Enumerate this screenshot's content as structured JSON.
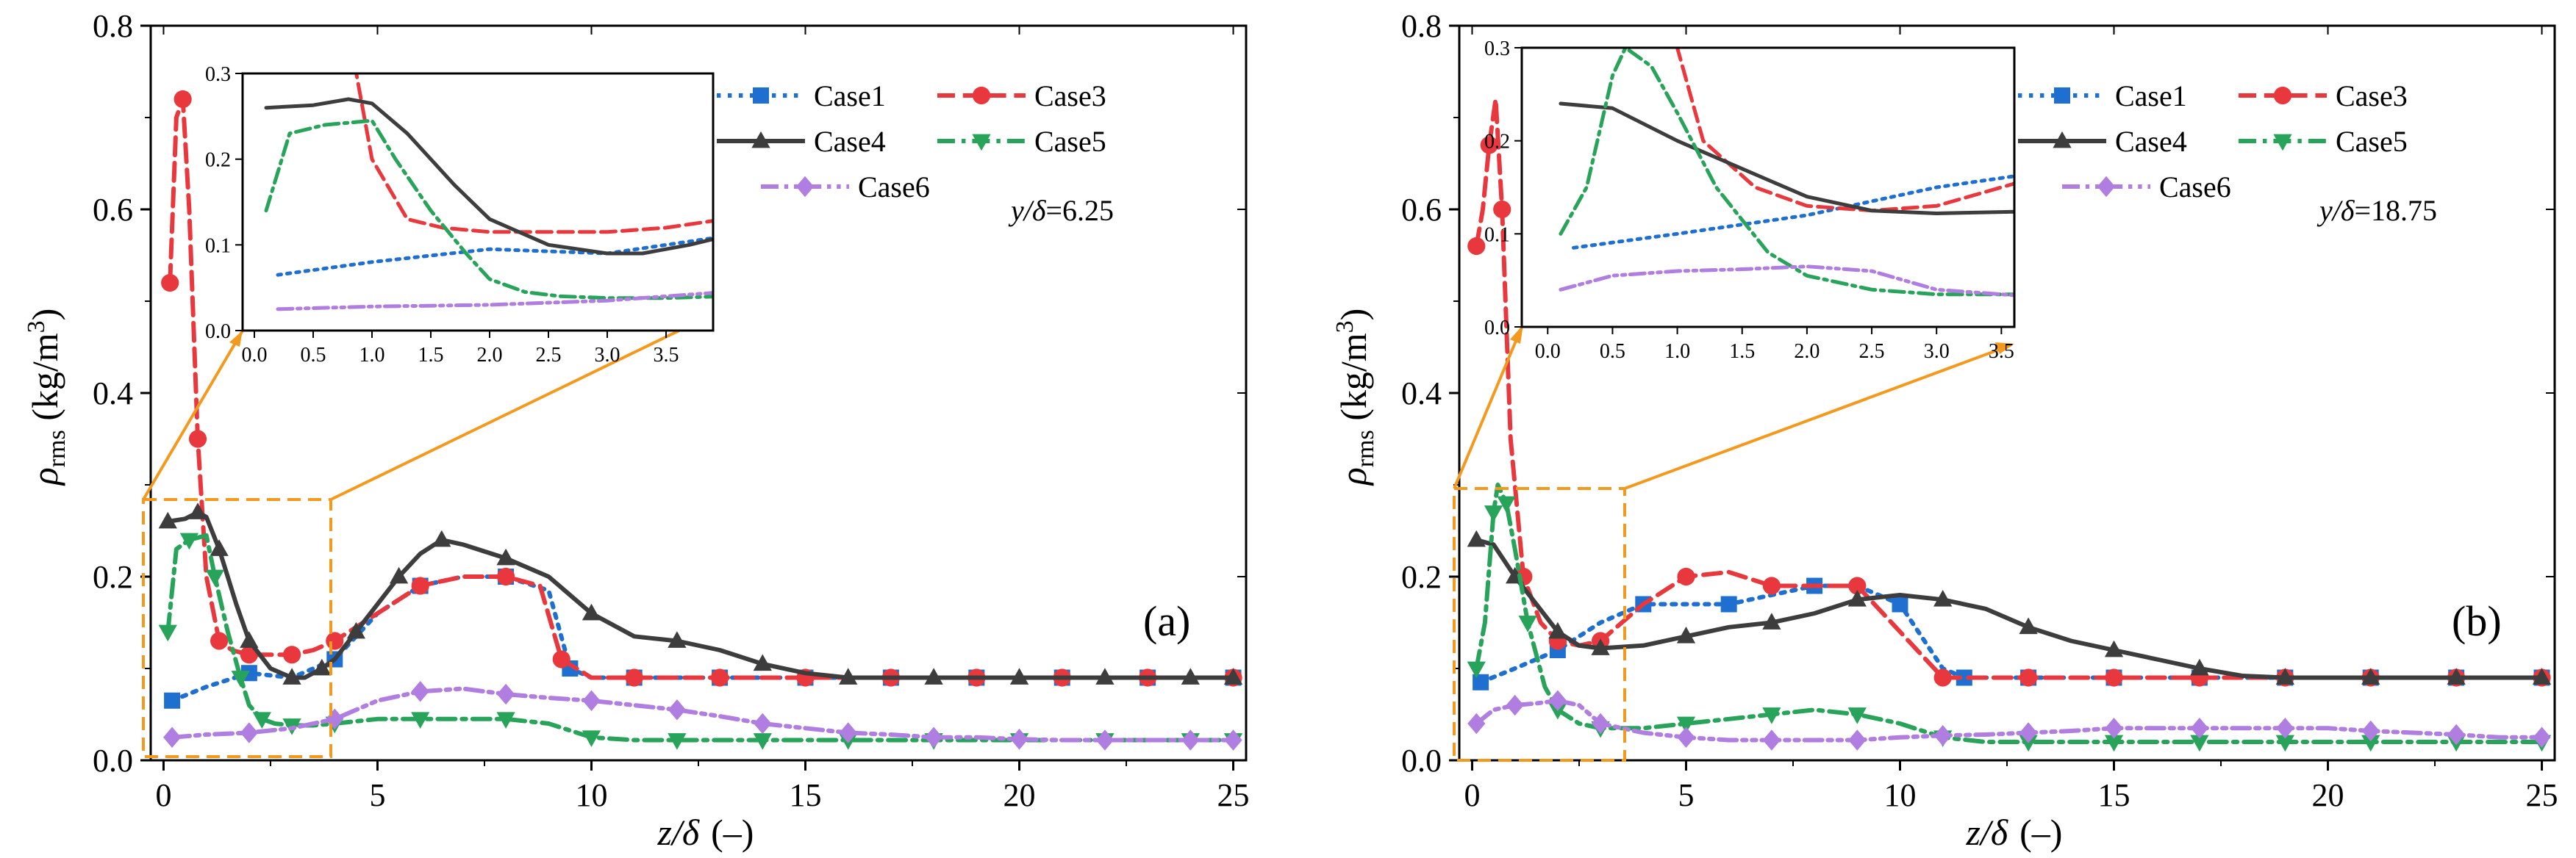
{
  "figure": {
    "xlabel_main": "z/δ",
    "xlabel_unit": "(–)",
    "ylabel_rho": "ρ",
    "ylabel_sub": "rms",
    "ylabel_unit": " (kg/m",
    "ylabel_sup": "3",
    "ylabel_close": ")"
  },
  "series_styles": [
    {
      "name": "Case1",
      "color": "#1f6fd0",
      "marker": "square",
      "dash": "dot"
    },
    {
      "name": "Case3",
      "color": "#e8383d",
      "marker": "circle",
      "dash": "dash"
    },
    {
      "name": "Case4",
      "color": "#3d3d3d",
      "marker": "triangle",
      "dash": "solid"
    },
    {
      "name": "Case5",
      "color": "#27a35a",
      "marker": "triangle-down",
      "dash": "dashdot"
    },
    {
      "name": "Case6",
      "color": "#b07de0",
      "marker": "diamond",
      "dash": "dashdotdot"
    }
  ],
  "chart_data": [
    {
      "type": "line",
      "panel_label": "(a)",
      "annotation_var": "y/δ",
      "annotation_val": "=6.25",
      "xlim": [
        -0.3,
        25.3
      ],
      "ylim": [
        0,
        0.8
      ],
      "xticks": [
        0,
        5,
        10,
        15,
        20,
        25
      ],
      "yticks": [
        0.0,
        0.2,
        0.4,
        0.6,
        0.8
      ],
      "inset": {
        "xlim": [
          -0.1,
          3.9
        ],
        "ylim": [
          0,
          0.3
        ],
        "xticks": [
          0,
          0.5,
          1,
          1.5,
          2,
          2.5,
          3,
          3.5
        ],
        "yticks": [
          0,
          0.1,
          0.2,
          0.3
        ]
      },
      "series": [
        {
          "name": "Case1",
          "x": [
            0.2,
            1.0,
            2.0,
            3.0,
            4.0,
            5.0,
            6.0,
            7.0,
            8.0,
            9.0,
            9.5,
            10,
            11,
            12,
            13,
            14,
            15,
            16,
            17,
            18,
            19,
            20,
            21,
            22,
            23,
            24,
            25
          ],
          "y": [
            0.065,
            0.08,
            0.095,
            0.09,
            0.11,
            0.16,
            0.19,
            0.2,
            0.2,
            0.185,
            0.1,
            0.09,
            0.09,
            0.09,
            0.09,
            0.09,
            0.09,
            0.09,
            0.09,
            0.09,
            0.09,
            0.09,
            0.09,
            0.09,
            0.09,
            0.09,
            0.09
          ]
        },
        {
          "name": "Case3",
          "x": [
            0.15,
            0.3,
            0.45,
            0.6,
            0.8,
            1.0,
            1.3,
            1.6,
            2.0,
            2.5,
            3.0,
            3.5,
            4.0,
            5.0,
            6.0,
            7.0,
            8.0,
            8.8,
            9.3,
            10,
            11,
            12,
            13,
            14,
            15,
            16,
            17,
            18,
            19,
            20,
            21,
            22,
            23,
            24,
            25
          ],
          "y": [
            0.52,
            0.7,
            0.72,
            0.6,
            0.35,
            0.2,
            0.13,
            0.12,
            0.115,
            0.115,
            0.115,
            0.12,
            0.13,
            0.16,
            0.19,
            0.2,
            0.2,
            0.19,
            0.11,
            0.09,
            0.09,
            0.09,
            0.09,
            0.09,
            0.09,
            0.09,
            0.09,
            0.09,
            0.09,
            0.09,
            0.09,
            0.09,
            0.09,
            0.09,
            0.09
          ]
        },
        {
          "name": "Case4",
          "x": [
            0.1,
            0.5,
            0.8,
            1.0,
            1.3,
            1.7,
            2.0,
            2.5,
            3.0,
            3.3,
            3.7,
            4.0,
            4.5,
            5.0,
            5.5,
            6.0,
            6.5,
            7.0,
            8.0,
            9.0,
            10,
            11,
            12,
            13,
            14,
            15,
            16,
            17,
            18,
            19,
            20,
            21,
            22,
            23,
            24,
            25
          ],
          "y": [
            0.26,
            0.263,
            0.27,
            0.265,
            0.23,
            0.17,
            0.13,
            0.1,
            0.09,
            0.09,
            0.1,
            0.11,
            0.14,
            0.17,
            0.2,
            0.225,
            0.24,
            0.235,
            0.22,
            0.2,
            0.16,
            0.135,
            0.13,
            0.12,
            0.105,
            0.095,
            0.09,
            0.09,
            0.09,
            0.09,
            0.09,
            0.09,
            0.09,
            0.09,
            0.09,
            0.09
          ]
        },
        {
          "name": "Case5",
          "x": [
            0.1,
            0.3,
            0.6,
            1.0,
            1.2,
            1.5,
            1.8,
            2.0,
            2.3,
            2.6,
            3.0,
            3.5,
            4.0,
            5.0,
            6.0,
            7.0,
            8.0,
            9.0,
            10,
            11,
            12,
            13,
            14,
            15,
            16,
            17,
            18,
            19,
            20,
            21,
            22,
            23,
            24,
            25
          ],
          "y": [
            0.14,
            0.23,
            0.24,
            0.245,
            0.2,
            0.14,
            0.09,
            0.06,
            0.045,
            0.04,
            0.038,
            0.038,
            0.04,
            0.045,
            0.045,
            0.045,
            0.045,
            0.04,
            0.025,
            0.022,
            0.022,
            0.022,
            0.022,
            0.022,
            0.022,
            0.022,
            0.022,
            0.022,
            0.022,
            0.022,
            0.022,
            0.022,
            0.022,
            0.022
          ]
        },
        {
          "name": "Case6",
          "x": [
            0.2,
            1.0,
            2.0,
            3.0,
            4.0,
            5.0,
            6.0,
            7.0,
            8.0,
            9.0,
            10,
            11,
            12,
            13,
            14,
            15,
            16,
            17,
            18,
            19,
            20,
            21,
            22,
            23,
            24,
            25
          ],
          "y": [
            0.025,
            0.028,
            0.03,
            0.035,
            0.045,
            0.065,
            0.075,
            0.078,
            0.072,
            0.068,
            0.065,
            0.06,
            0.055,
            0.048,
            0.04,
            0.035,
            0.03,
            0.028,
            0.025,
            0.025,
            0.023,
            0.022,
            0.022,
            0.022,
            0.022,
            0.022
          ]
        }
      ]
    },
    {
      "type": "line",
      "panel_label": "(b)",
      "annotation_var": "y/δ",
      "annotation_val": "=18.75",
      "xlim": [
        -0.3,
        25.3
      ],
      "ylim": [
        0,
        0.8
      ],
      "xticks": [
        0,
        5,
        10,
        15,
        20,
        25
      ],
      "yticks": [
        0.0,
        0.2,
        0.4,
        0.6,
        0.8
      ],
      "inset": {
        "xlim": [
          -0.2,
          3.6
        ],
        "ylim": [
          0,
          0.3
        ],
        "xticks": [
          0,
          0.5,
          1,
          1.5,
          2,
          2.5,
          3,
          3.5
        ],
        "yticks": [
          0,
          0.1,
          0.2,
          0.3
        ]
      },
      "series": [
        {
          "name": "Case1",
          "x": [
            0.2,
            1.0,
            2.0,
            3.0,
            4.0,
            5.0,
            6.0,
            7.0,
            8.0,
            9.0,
            10,
            11,
            11.5,
            12,
            13,
            14,
            15,
            16,
            17,
            18,
            19,
            20,
            21,
            22,
            23,
            24,
            25
          ],
          "y": [
            0.085,
            0.1,
            0.12,
            0.15,
            0.17,
            0.17,
            0.17,
            0.18,
            0.19,
            0.19,
            0.17,
            0.1,
            0.09,
            0.09,
            0.09,
            0.09,
            0.09,
            0.09,
            0.09,
            0.09,
            0.09,
            0.09,
            0.09,
            0.09,
            0.09,
            0.09,
            0.09
          ]
        },
        {
          "name": "Case3",
          "x": [
            0.1,
            0.25,
            0.4,
            0.55,
            0.7,
            0.9,
            1.2,
            1.6,
            2.0,
            2.5,
            3.0,
            4.0,
            5.0,
            6.0,
            7.0,
            8.0,
            9.0,
            10,
            11,
            12,
            13,
            14,
            15,
            16,
            17,
            18,
            19,
            20,
            21,
            22,
            23,
            24,
            25
          ],
          "y": [
            0.56,
            0.6,
            0.67,
            0.72,
            0.6,
            0.35,
            0.2,
            0.15,
            0.13,
            0.125,
            0.13,
            0.17,
            0.2,
            0.205,
            0.19,
            0.19,
            0.19,
            0.14,
            0.09,
            0.09,
            0.09,
            0.09,
            0.09,
            0.09,
            0.09,
            0.09,
            0.09,
            0.09,
            0.09,
            0.09,
            0.09,
            0.09,
            0.09
          ]
        },
        {
          "name": "Case4",
          "x": [
            0.1,
            0.5,
            1.0,
            1.5,
            2.0,
            2.5,
            3.0,
            4.0,
            5.0,
            6.0,
            7.0,
            8.0,
            9.0,
            10,
            11,
            12,
            13,
            14,
            15,
            16,
            17,
            18,
            19,
            20,
            21,
            22,
            23,
            24,
            25
          ],
          "y": [
            0.24,
            0.235,
            0.2,
            0.17,
            0.14,
            0.125,
            0.122,
            0.125,
            0.135,
            0.145,
            0.15,
            0.16,
            0.175,
            0.18,
            0.175,
            0.165,
            0.145,
            0.13,
            0.12,
            0.11,
            0.1,
            0.092,
            0.09,
            0.09,
            0.09,
            0.09,
            0.09,
            0.09,
            0.09
          ]
        },
        {
          "name": "Case5",
          "x": [
            0.1,
            0.3,
            0.5,
            0.6,
            0.8,
            1.0,
            1.3,
            1.7,
            2.0,
            2.5,
            3.0,
            4.0,
            5.0,
            6.0,
            7.0,
            8.0,
            9.0,
            10,
            11,
            12,
            13,
            14,
            15,
            16,
            17,
            18,
            19,
            20,
            21,
            22,
            23,
            24,
            25
          ],
          "y": [
            0.1,
            0.15,
            0.27,
            0.3,
            0.28,
            0.23,
            0.15,
            0.08,
            0.055,
            0.04,
            0.035,
            0.035,
            0.04,
            0.045,
            0.05,
            0.055,
            0.05,
            0.04,
            0.025,
            0.02,
            0.02,
            0.02,
            0.02,
            0.02,
            0.02,
            0.02,
            0.02,
            0.02,
            0.02,
            0.02,
            0.02,
            0.02,
            0.02
          ]
        },
        {
          "name": "Case6",
          "x": [
            0.1,
            0.5,
            1.0,
            1.5,
            2.0,
            2.5,
            3.0,
            4.0,
            5.0,
            6.0,
            7.0,
            8.0,
            9.0,
            10,
            11,
            12,
            13,
            14,
            15,
            16,
            17,
            18,
            19,
            20,
            21,
            22,
            23,
            24,
            25
          ],
          "y": [
            0.04,
            0.055,
            0.06,
            0.062,
            0.065,
            0.06,
            0.04,
            0.03,
            0.025,
            0.022,
            0.022,
            0.022,
            0.022,
            0.025,
            0.027,
            0.028,
            0.03,
            0.032,
            0.035,
            0.035,
            0.035,
            0.035,
            0.035,
            0.035,
            0.032,
            0.03,
            0.028,
            0.025,
            0.025
          ]
        }
      ]
    }
  ]
}
